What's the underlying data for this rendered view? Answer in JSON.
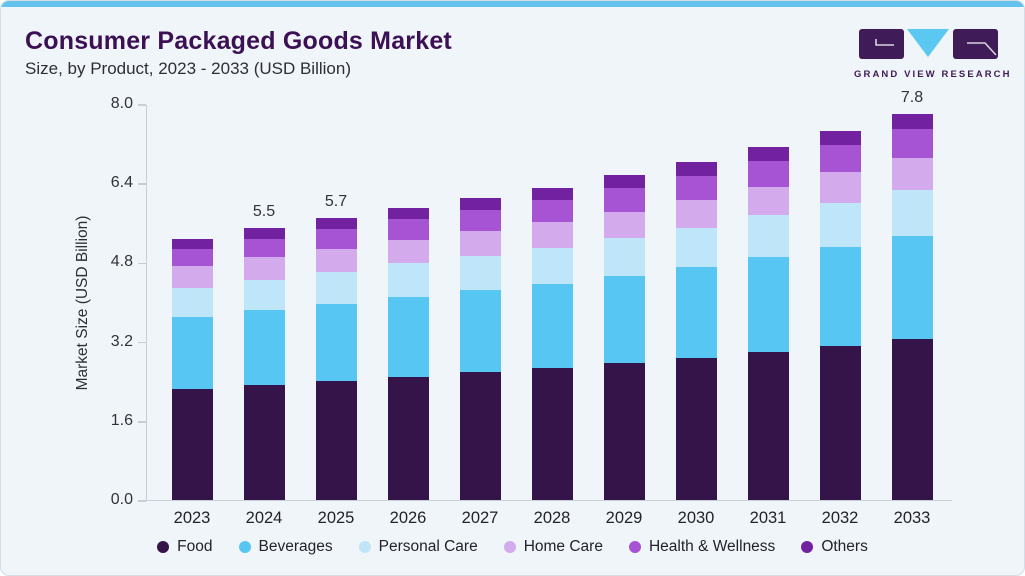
{
  "header": {
    "title": "Consumer Packaged Goods Market",
    "subtitle": "Size, by Product, 2023 - 2033 (USD Billion)",
    "logo_text": "GRAND VIEW RESEARCH"
  },
  "brand": {
    "logo_purple": "#3f1b57",
    "logo_blue": "#5ac8f0",
    "accent_strip_blue": "#64c3ec",
    "title_purple": "#3c1054",
    "card_background": "#eff5f9"
  },
  "chart_data": {
    "type": "bar",
    "stacked": true,
    "title": "Consumer Packaged Goods Market Size, by Product, 2023 - 2033 (USD Billion)",
    "ylabel": "Market Size (USD Billion)",
    "xlabel": "",
    "ylim": [
      0,
      8
    ],
    "yticks": [
      "8.0",
      "6.4",
      "4.8",
      "3.2",
      "1.6",
      "0.0"
    ],
    "grid": false,
    "legend_position": "bottom",
    "categories": [
      "2023",
      "2024",
      "2025",
      "2026",
      "2027",
      "2028",
      "2029",
      "2030",
      "2031",
      "2032",
      "2033"
    ],
    "bar_labels": [
      "",
      "5.5",
      "5.7",
      "",
      "",
      "",
      "",
      "",
      "",
      "",
      "7.8"
    ],
    "series": [
      {
        "name": "Food",
        "color": "#341449",
        "values": [
          2.25,
          2.33,
          2.41,
          2.49,
          2.58,
          2.66,
          2.76,
          2.86,
          2.99,
          3.12,
          3.26
        ]
      },
      {
        "name": "Beverages",
        "color": "#58c6f2",
        "values": [
          1.45,
          1.5,
          1.55,
          1.61,
          1.66,
          1.71,
          1.77,
          1.84,
          1.92,
          2.0,
          2.08
        ]
      },
      {
        "name": "Personal Care",
        "color": "#bfe6f8",
        "values": [
          0.59,
          0.62,
          0.65,
          0.68,
          0.7,
          0.73,
          0.76,
          0.8,
          0.84,
          0.89,
          0.93
        ]
      },
      {
        "name": "Home Care",
        "color": "#d3aaec",
        "values": [
          0.43,
          0.45,
          0.47,
          0.48,
          0.49,
          0.51,
          0.54,
          0.56,
          0.58,
          0.61,
          0.64
        ]
      },
      {
        "name": "Health & Wellness",
        "color": "#a653d4",
        "values": [
          0.36,
          0.38,
          0.4,
          0.41,
          0.43,
          0.45,
          0.47,
          0.49,
          0.52,
          0.55,
          0.58
        ]
      },
      {
        "name": "Others",
        "color": "#7222a0",
        "values": [
          0.2,
          0.21,
          0.22,
          0.23,
          0.24,
          0.25,
          0.26,
          0.27,
          0.28,
          0.29,
          0.31
        ]
      }
    ]
  }
}
